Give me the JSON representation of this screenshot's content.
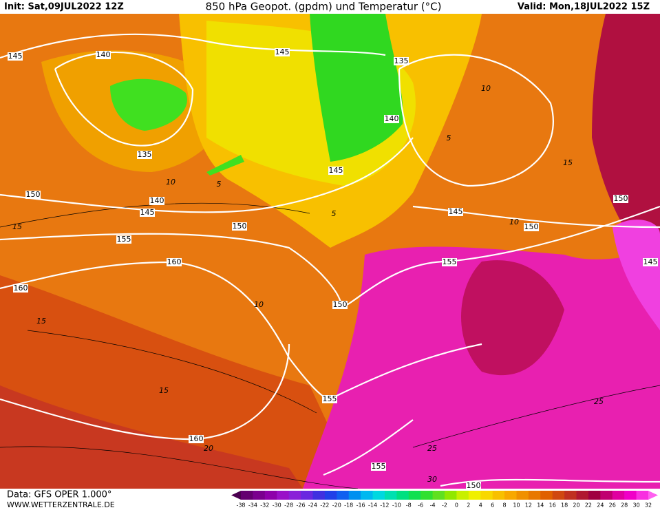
{
  "header": {
    "init": "Init: Sat,09JUL2022 12Z",
    "title": "850 hPa Geopot. (gpdm) und Temperatur (°C)",
    "valid": "Valid: Mon,18JUL2022 15Z"
  },
  "map": {
    "geopotential_labels": [
      145,
      140,
      145,
      135,
      140,
      135,
      145,
      150,
      140,
      145,
      150,
      145,
      150,
      150,
      155,
      155,
      160,
      145,
      160,
      150,
      155,
      160,
      155,
      150
    ],
    "temperature_labels": [
      10,
      5,
      15,
      10,
      5,
      5,
      10,
      15,
      10,
      15,
      15,
      20,
      25,
      25,
      30
    ]
  },
  "footer": {
    "data": "Data: GFS OPER 1.000°",
    "site": "WWW.WETTERZENTRALE.DE"
  },
  "colorbar": {
    "labels": [
      -38,
      -34,
      -32,
      -30,
      -28,
      -26,
      -24,
      -22,
      -20,
      -18,
      -16,
      -14,
      -12,
      -10,
      -8,
      -6,
      -4,
      -2,
      0,
      2,
      4,
      6,
      8,
      10,
      12,
      14,
      16,
      18,
      20,
      22,
      24,
      26,
      28,
      30,
      32
    ],
    "colors": [
      "#4b0050",
      "#640070",
      "#7a008e",
      "#8e00aa",
      "#9a10c8",
      "#8a20d8",
      "#6a28e0",
      "#4030e0",
      "#2040e8",
      "#1060f0",
      "#0090f0",
      "#00b8f0",
      "#00d8e0",
      "#00e0b0",
      "#00e080",
      "#10e050",
      "#30e030",
      "#60e020",
      "#90e800",
      "#c8f000",
      "#f0f000",
      "#f8d800",
      "#f8c000",
      "#f8a800",
      "#f09000",
      "#e87800",
      "#e06000",
      "#d04810",
      "#c03020",
      "#b01830",
      "#a00040",
      "#c00070",
      "#e000a0",
      "#f000c8",
      "#f830e0",
      "#ff60f0"
    ]
  }
}
